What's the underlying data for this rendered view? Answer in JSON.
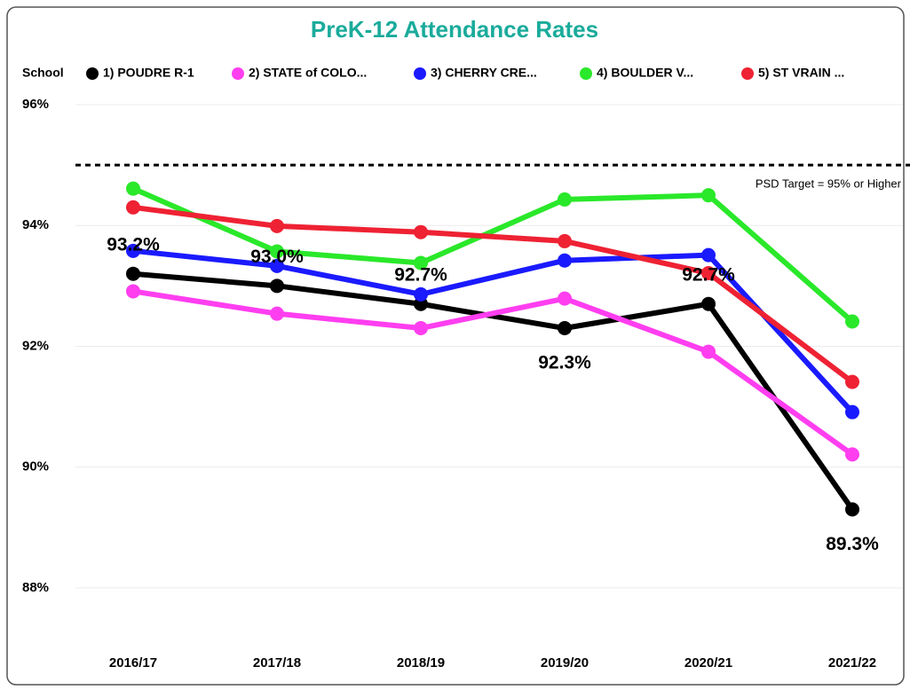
{
  "chart_data": {
    "type": "line",
    "title": "PreK-12 Attendance Rates",
    "legend_title": "School",
    "categories": [
      "2016/17",
      "2017/18",
      "2018/19",
      "2019/20",
      "2020/21",
      "2021/22"
    ],
    "series": [
      {
        "name": "1) POUDRE R-1",
        "color": "#000000",
        "values": [
          93.2,
          93.0,
          92.7,
          92.3,
          92.7,
          89.3
        ],
        "value_labels": [
          "93.2%",
          "93.0%",
          "92.7%",
          "92.3%",
          "92.7%",
          "89.3%"
        ]
      },
      {
        "name": "2) STATE of COLO...",
        "color": "#ff3ef0",
        "values": [
          92.91,
          92.54,
          92.3,
          92.79,
          91.91,
          90.21
        ]
      },
      {
        "name": "3) CHERRY CRE...",
        "color": "#1a1aff",
        "values": [
          93.58,
          93.33,
          92.86,
          93.42,
          93.51,
          90.91
        ]
      },
      {
        "name": "4) BOULDER V...",
        "color": "#2ae82a",
        "values": [
          94.61,
          93.57,
          93.38,
          94.43,
          94.5,
          92.41
        ]
      },
      {
        "name": "5) ST VRAIN ...",
        "color": "#ee2233",
        "values": [
          94.3,
          93.99,
          93.89,
          93.74,
          93.21,
          91.41
        ]
      }
    ],
    "ylim": [
      87,
      96
    ],
    "yticks": [
      {
        "value": 88,
        "label": "88%"
      },
      {
        "value": 90,
        "label": "90%"
      },
      {
        "value": 92,
        "label": "92%"
      },
      {
        "value": 94,
        "label": "94%"
      },
      {
        "value": 96,
        "label": "96%"
      }
    ],
    "grid": true,
    "target": {
      "value": 95,
      "label": "PSD Target = 95% or Higher"
    }
  }
}
